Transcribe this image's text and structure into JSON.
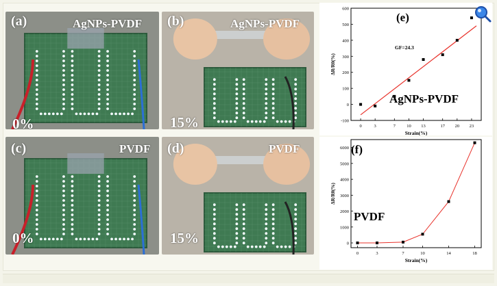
{
  "panels": {
    "a": {
      "label": "(a)",
      "title": "AgNPs-PVDF",
      "strain": "0%"
    },
    "b": {
      "label": "(b)",
      "title": "AgNPs-PVDF",
      "strain": "15%"
    },
    "c": {
      "label": "(c)",
      "title": "PVDF",
      "strain": "0%"
    },
    "d": {
      "label": "(d)",
      "title": "PVDF",
      "strain": "15%"
    }
  },
  "chart_data": [
    {
      "type": "scatter",
      "panel_label": "(e)",
      "annotation": "AgNPs-PVDF",
      "fit_label": "GF=24.3",
      "xlabel": "Strain(%)",
      "ylabel": "ΔR/R0(%)",
      "x": [
        0,
        3,
        7,
        10,
        13,
        17,
        20,
        23
      ],
      "y": [
        0,
        -10,
        50,
        150,
        280,
        310,
        400,
        540
      ],
      "fit": {
        "x": [
          0,
          24
        ],
        "y": [
          -65,
          490
        ]
      },
      "xticks": [
        0,
        3,
        7,
        10,
        13,
        17,
        20,
        23
      ],
      "yticks": [
        -100,
        0,
        100,
        200,
        300,
        400,
        500,
        600
      ],
      "xlim": [
        -2,
        25
      ],
      "ylim": [
        -100,
        600
      ],
      "point_color": "#000000",
      "fit_color": "#e8312a"
    },
    {
      "type": "line",
      "panel_label": "(f)",
      "annotation": "PVDF",
      "xlabel": "Strain(%)",
      "ylabel": "ΔR/R0(%)",
      "x": [
        0,
        3,
        7,
        10,
        14,
        18
      ],
      "y": [
        0,
        0,
        50,
        550,
        2600,
        6300
      ],
      "xticks": [
        0,
        3,
        7,
        10,
        14,
        18
      ],
      "yticks": [
        0,
        1000,
        2000,
        3000,
        4000,
        5000,
        6000
      ],
      "xlim": [
        -1,
        19
      ],
      "ylim": [
        -300,
        6500
      ],
      "point_color": "#000000",
      "line_color": "#e8312a"
    }
  ],
  "colors": {
    "page_bg": "#f4f4ea",
    "board_green": "#3f7a52",
    "led_white": "#f4fbff",
    "wire_red": "#c8202a",
    "accent_blue": "#2b6fd6"
  },
  "icons": {
    "corner": "magnifier-icon"
  }
}
